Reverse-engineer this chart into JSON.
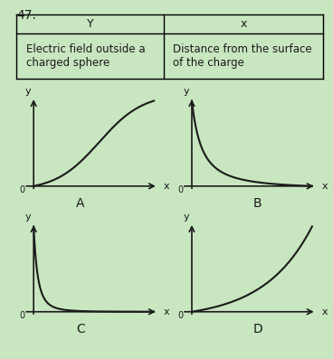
{
  "background_color": "#c8e6c0",
  "title_text": "47.",
  "table_Y": "Y",
  "table_X": "x",
  "table_row1_left": "Electric field outside a\ncharged sphere",
  "table_row1_right": "Distance from the surface\nof the charge",
  "line_color": "#1a1a1a",
  "axis_color": "#1a1a1a",
  "label_color": "#1a1a1a",
  "fontsize_label": 9,
  "fontsize_graph_label": 10
}
